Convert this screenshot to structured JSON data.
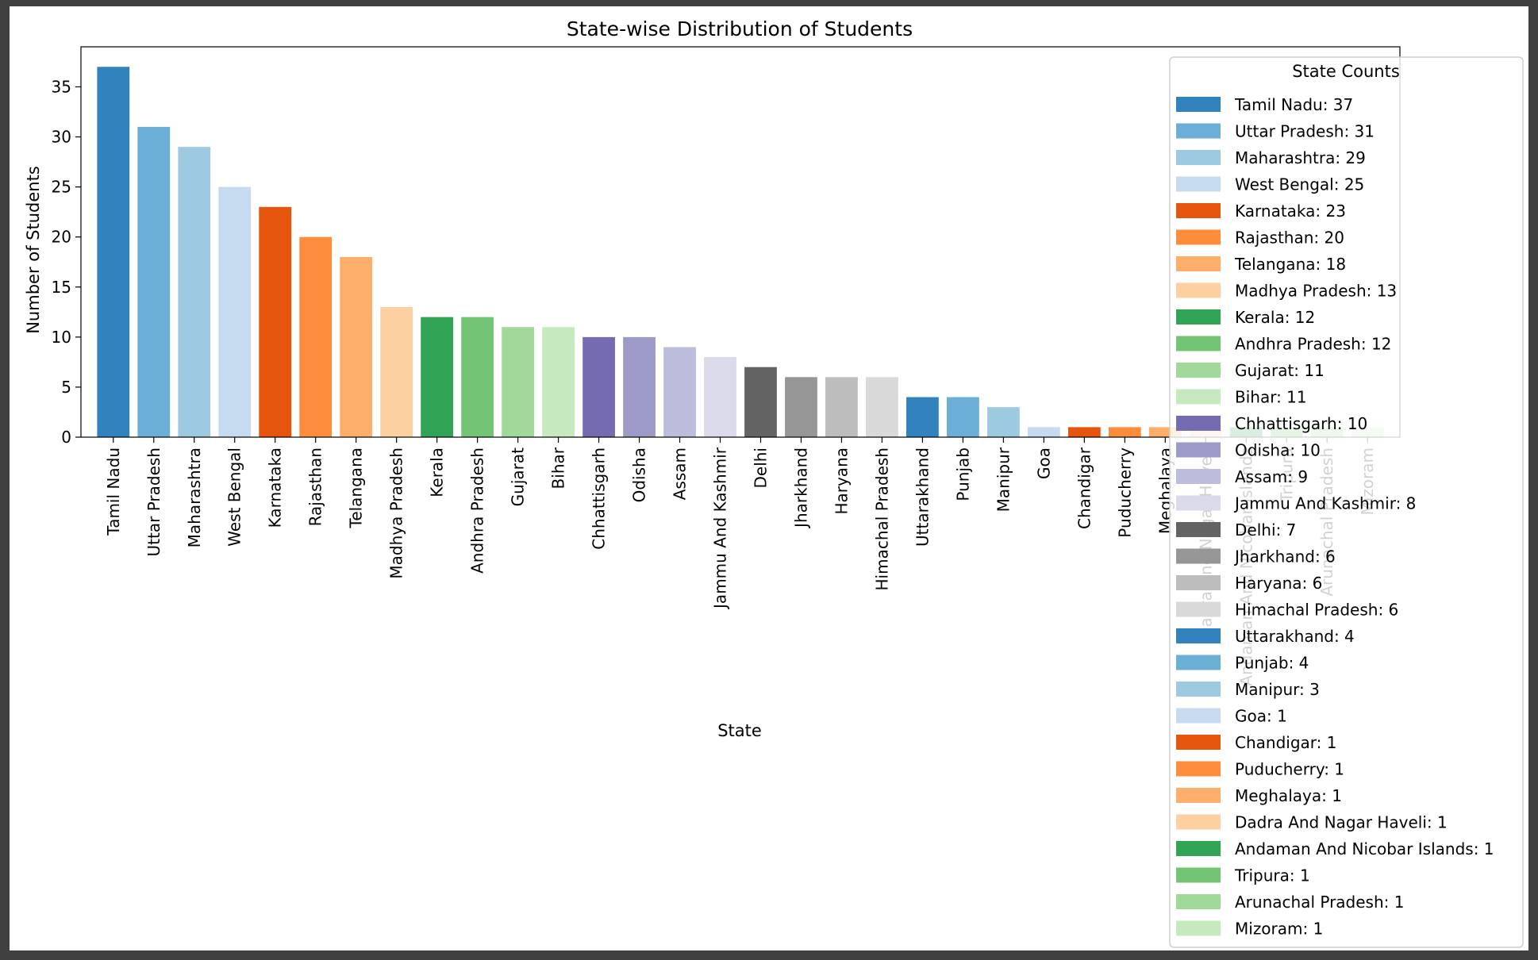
{
  "chart_data": {
    "type": "bar",
    "title": "State-wise Distribution of Students",
    "xlabel": "State",
    "ylabel": "Number of Students",
    "ylim": [
      0,
      39
    ],
    "yticks": [
      0,
      5,
      10,
      15,
      20,
      25,
      30,
      35
    ],
    "grid": false,
    "legend": {
      "title": "State Counts",
      "placement": "right"
    },
    "categories": [
      "Tamil Nadu",
      "Uttar Pradesh",
      "Maharashtra",
      "West Bengal",
      "Karnataka",
      "Rajasthan",
      "Telangana",
      "Madhya Pradesh",
      "Kerala",
      "Andhra Pradesh",
      "Gujarat",
      "Bihar",
      "Chhattisgarh",
      "Odisha",
      "Assam",
      "Jammu And Kashmir",
      "Delhi",
      "Jharkhand",
      "Haryana",
      "Himachal Pradesh",
      "Uttarakhand",
      "Punjab",
      "Manipur",
      "Goa",
      "Chandigar",
      "Puducherry",
      "Meghalaya",
      "Dadra And Nagar Haveli",
      "Andaman And Nicobar Islands",
      "Tripura",
      "Arunachal Pradesh",
      "Mizoram"
    ],
    "values": [
      37,
      31,
      29,
      25,
      23,
      20,
      18,
      13,
      12,
      12,
      11,
      11,
      10,
      10,
      9,
      8,
      7,
      6,
      6,
      6,
      4,
      4,
      3,
      1,
      1,
      1,
      1,
      1,
      1,
      1,
      1,
      1
    ],
    "legend_labels": [
      "Tamil Nadu: 37",
      "Uttar Pradesh: 31",
      "Maharashtra: 29",
      "West Bengal: 25",
      "Karnataka: 23",
      "Rajasthan: 20",
      "Telangana: 18",
      "Madhya Pradesh: 13",
      "Kerala: 12",
      "Andhra Pradesh: 12",
      "Gujarat: 11",
      "Bihar: 11",
      "Chhattisgarh: 10",
      "Odisha: 10",
      "Assam: 9",
      "Jammu And Kashmir: 8",
      "Delhi: 7",
      "Jharkhand: 6",
      "Haryana: 6",
      "Himachal Pradesh: 6",
      "Uttarakhand: 4",
      "Punjab: 4",
      "Manipur: 3",
      "Goa: 1",
      "Chandigar: 1",
      "Puducherry: 1",
      "Meghalaya: 1",
      "Dadra And Nagar Haveli: 1",
      "Andaman And Nicobar Islands: 1",
      "Tripura: 1",
      "Arunachal Pradesh: 1",
      "Mizoram: 1"
    ],
    "colors": [
      "#3182bd",
      "#6baed6",
      "#9ecae1",
      "#c6dbef",
      "#e6550d",
      "#fd8d3c",
      "#fdae6b",
      "#fdd0a2",
      "#31a354",
      "#74c476",
      "#a1d99b",
      "#c7e9c0",
      "#756bb1",
      "#9e9ac8",
      "#bcbddc",
      "#dadaeb",
      "#636363",
      "#969696",
      "#bdbdbd",
      "#d9d9d9",
      "#3182bd",
      "#6baed6",
      "#9ecae1",
      "#c6dbef",
      "#e6550d",
      "#fd8d3c",
      "#fdae6b",
      "#fdd0a2",
      "#31a354",
      "#74c476",
      "#a1d99b",
      "#c7e9c0"
    ]
  }
}
